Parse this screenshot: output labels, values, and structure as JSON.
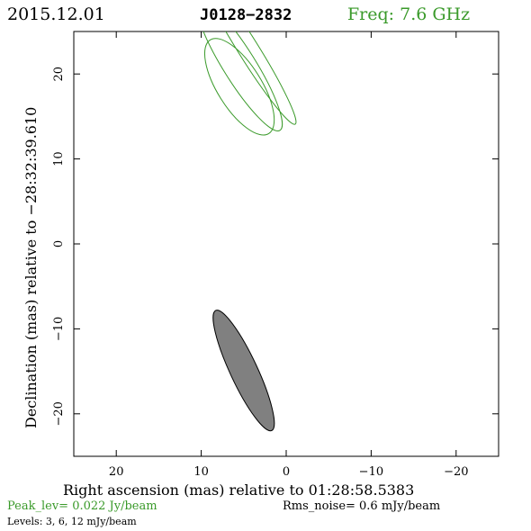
{
  "header": {
    "date": "2015.12.01",
    "source": "J0128−2832",
    "freq": "Freq: 7.6 GHz"
  },
  "colors": {
    "freq": "#3a9a2a",
    "contour": "#3a9a2a",
    "beam_fill": "#808080",
    "axes": "#000000"
  },
  "chart_data": {
    "type": "contour",
    "xlabel": "Right ascension (mas) relative to 01:28:58.5383",
    "ylabel": "Declination (mas) relative to −28:32:39.610",
    "xlim": [
      25,
      -25
    ],
    "ylim": [
      -25,
      25
    ],
    "x_ticks": [
      20,
      10,
      0,
      -10,
      -20
    ],
    "y_ticks": [
      20,
      10,
      0,
      -10,
      -20
    ],
    "x_tick_labels": [
      "20",
      "10",
      "0",
      "−10",
      "−20"
    ],
    "y_tick_labels": [
      "20",
      "10",
      "0",
      "−10",
      "−20"
    ],
    "contours": [
      {
        "level": 3,
        "cx": 5.5,
        "cy": 18.5,
        "a": 6.5,
        "b": 2.6,
        "pa": -32
      },
      {
        "level": 6,
        "cx": 5.5,
        "cy": 21.0,
        "a": 9.0,
        "b": 1.9,
        "pa": -32
      },
      {
        "level": 12,
        "cx": 4.5,
        "cy": 23.0,
        "a": 10.5,
        "b": 1.2,
        "pa": -32
      }
    ],
    "beam": {
      "cx": 5.0,
      "cy": -14.9,
      "a": 7.8,
      "b": 1.6,
      "pa": -25
    }
  },
  "footer": {
    "peak": "Peak_lev=  0.022 Jy/beam",
    "rms": "Rms_noise=  0.6 mJy/beam",
    "levels": "Levels:  3,  6,  12 mJy/beam"
  }
}
